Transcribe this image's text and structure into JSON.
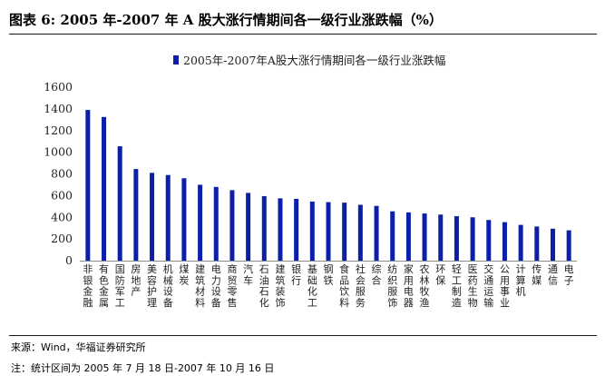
{
  "title": "图表 6:  2005 年-2007 年 A 股大涨行情期间各一级行业涨跌幅（%）",
  "source": "来源：Wind，华福证券研究所",
  "footnote": "注：统计区间为 2005 年 7 月 18 日-2007 年 10 月 16 日",
  "colors": {
    "bar": "#0b1fa8",
    "axis": "#8c8c8c"
  },
  "chart_data": {
    "type": "bar",
    "legend": "2005年-2007年A股大涨行情期间各一级行业涨跌幅",
    "legend_position": "top",
    "grid": false,
    "ylim": [
      0,
      1600
    ],
    "yticks": [
      0,
      200,
      400,
      600,
      800,
      1000,
      1200,
      1400,
      1600
    ],
    "categories": [
      "非银金融",
      "有色金属",
      "国防军工",
      "房地产",
      "美容护理",
      "机械设备",
      "煤炭",
      "建筑材料",
      "电力设备",
      "商贸零售",
      "汽车",
      "石油石化",
      "建筑装饰",
      "银行",
      "基础化工",
      "钢铁",
      "食品饮料",
      "社会服务",
      "综合",
      "纺织服饰",
      "家用电器",
      "农林牧渔",
      "环保",
      "轻工制造",
      "医药生物",
      "交通运输",
      "公用事业",
      "计算机",
      "传媒",
      "通信",
      "电子"
    ],
    "values": [
      1390,
      1325,
      1055,
      845,
      810,
      790,
      760,
      700,
      680,
      650,
      625,
      595,
      575,
      570,
      545,
      540,
      535,
      515,
      505,
      455,
      445,
      435,
      425,
      410,
      400,
      375,
      355,
      330,
      315,
      295,
      280
    ]
  }
}
